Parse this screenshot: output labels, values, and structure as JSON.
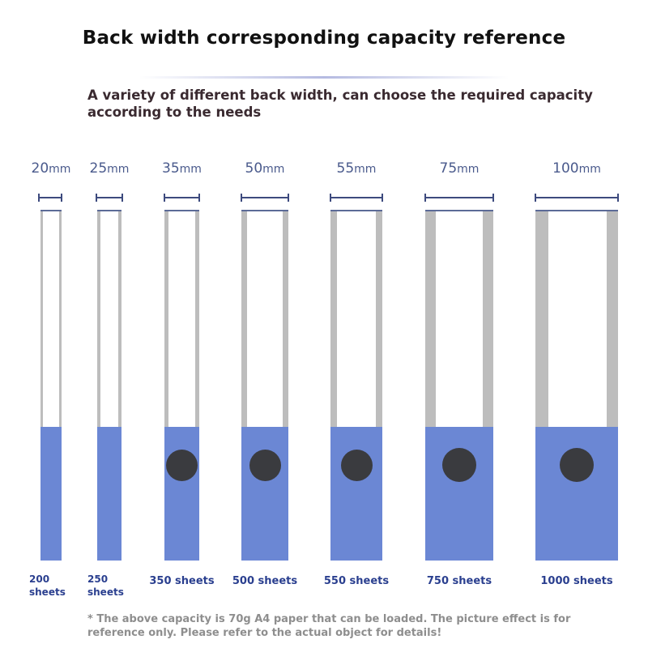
{
  "title": "Back width corresponding capacity reference",
  "subtitle": "A variety of different back width, can choose the required capacity according to the needs",
  "unit": "mm",
  "binders": [
    {
      "width": "20",
      "capacity": "200 sheets"
    },
    {
      "width": "25",
      "capacity": "250 sheets"
    },
    {
      "width": "35",
      "capacity": "350 sheets"
    },
    {
      "width": "50",
      "capacity": "500 sheets"
    },
    {
      "width": "55",
      "capacity": "550 sheets"
    },
    {
      "width": "75",
      "capacity": "750 sheets"
    },
    {
      "width": "100",
      "capacity": "1000 sheets"
    }
  ],
  "footnote": "* The above capacity is 70g A4 paper that can be loaded. The picture effect is for reference only. Please refer to the actual object for details!",
  "colors": {
    "spine_blue": "#6b87d4",
    "caption_blue": "#2a3f8f",
    "side_gray": "#bdbdbd",
    "hole_dark": "#3a3b3f"
  }
}
